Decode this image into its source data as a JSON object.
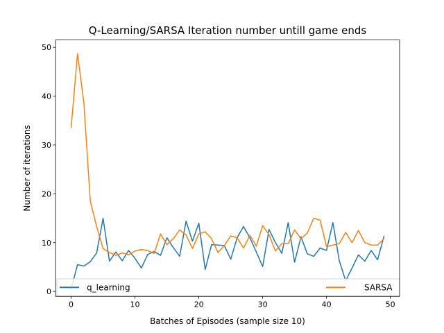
{
  "chart_data": {
    "type": "line",
    "title": "Q-Learning/SARSA Iteration number untill game ends",
    "xlabel": "Batches of Episodes (sample size 10)",
    "ylabel": "Number of iterations",
    "xlim": [
      -2.45,
      51.45
    ],
    "ylim": [
      -1.0,
      51.5
    ],
    "xticks": [
      0,
      10,
      20,
      30,
      40,
      50
    ],
    "yticks": [
      0,
      10,
      20,
      30,
      40,
      50
    ],
    "grid": false,
    "legend_placement": "bottom, spanning full width (q_learning left, SARSA right)",
    "x": [
      0,
      1,
      2,
      3,
      4,
      5,
      6,
      7,
      8,
      9,
      10,
      11,
      12,
      13,
      14,
      15,
      16,
      17,
      18,
      19,
      20,
      21,
      22,
      23,
      24,
      25,
      26,
      27,
      28,
      29,
      30,
      31,
      32,
      33,
      34,
      35,
      36,
      37,
      38,
      39,
      40,
      41,
      42,
      43,
      44,
      45,
      46,
      47,
      48,
      49
    ],
    "series": [
      {
        "name": "q_learning",
        "color": "#1f77b4",
        "values": [
          0.5,
          5.5,
          5.2,
          6.1,
          7.9,
          15.0,
          6.2,
          8.1,
          6.3,
          8.4,
          6.8,
          4.8,
          7.6,
          8.2,
          7.4,
          11.0,
          9.0,
          7.2,
          14.4,
          10.3,
          14.0,
          4.5,
          9.6,
          9.5,
          9.4,
          6.6,
          11.0,
          13.3,
          11.0,
          8.1,
          5.1,
          12.7,
          10.0,
          7.8,
          14.1,
          6.0,
          11.2,
          7.7,
          7.2,
          8.9,
          8.4,
          14.1,
          6.3,
          2.2,
          4.8,
          7.5,
          6.2,
          8.4,
          6.5,
          11.3
        ]
      },
      {
        "name": "SARSA",
        "color": "#ff7f0e",
        "values": [
          33.6,
          48.7,
          38.5,
          18.5,
          13.3,
          8.8,
          8.0,
          7.4,
          7.9,
          7.5,
          8.3,
          8.6,
          8.4,
          7.8,
          11.8,
          9.6,
          10.8,
          12.6,
          11.6,
          8.8,
          11.8,
          12.2,
          10.8,
          8.0,
          9.4,
          11.4,
          11.0,
          8.9,
          11.5,
          9.3,
          13.5,
          11.6,
          8.3,
          9.8,
          9.8,
          12.6,
          10.8,
          12.0,
          15.0,
          14.6,
          9.2,
          9.5,
          9.8,
          12.1,
          10.0,
          12.5,
          10.0,
          9.5,
          9.5,
          10.8
        ]
      }
    ]
  }
}
